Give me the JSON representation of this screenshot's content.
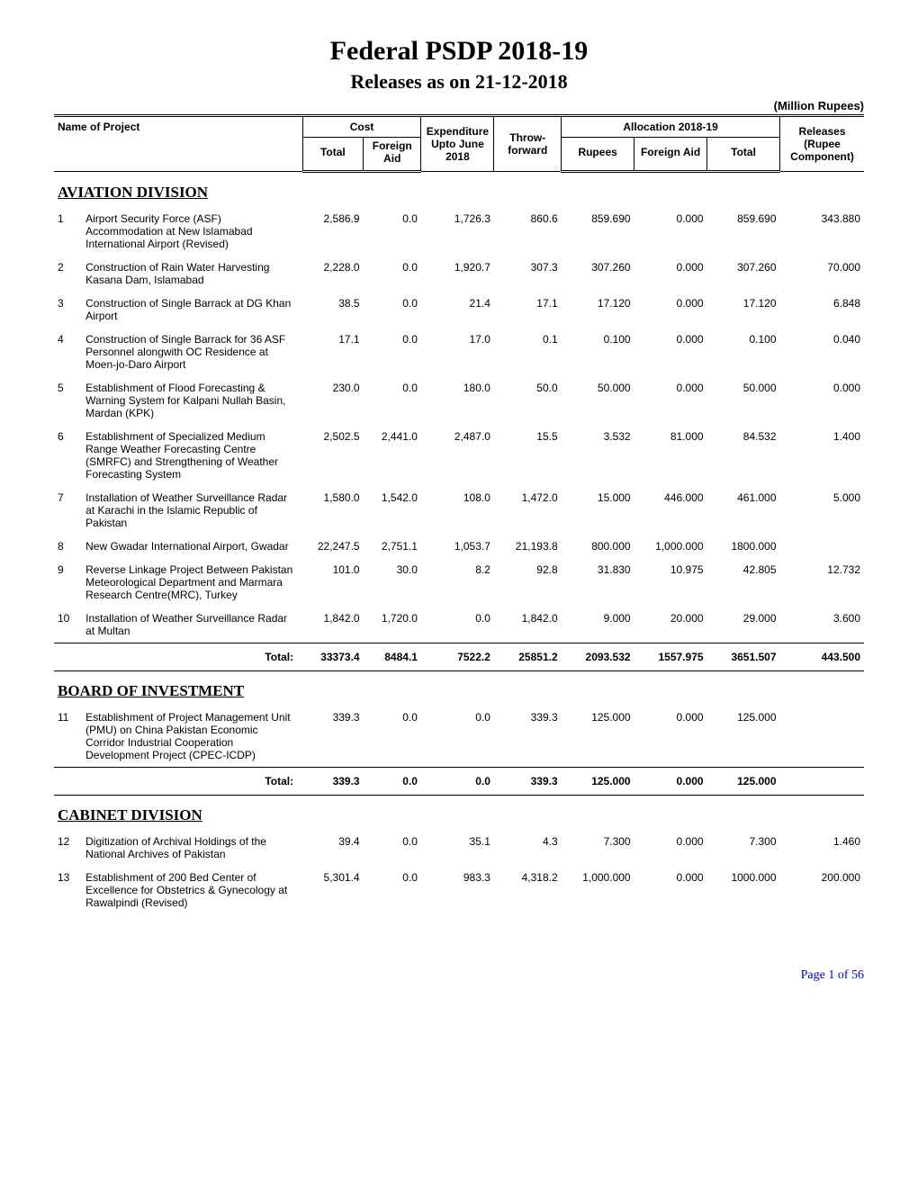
{
  "title": "Federal PSDP 2018-19",
  "subtitle": "Releases as on 21-12-2018",
  "unit_label": "(Million Rupees)",
  "headers": {
    "name": "Name of Project",
    "cost": "Cost",
    "cost_total": "Total",
    "cost_foreign": "Foreign Aid",
    "expenditure": "Expenditure Upto June 2018",
    "throw_forward": "Throw- forward",
    "allocation": "Allocation 2018-19",
    "alloc_rupees": "Rupees",
    "alloc_foreign": "Foreign Aid",
    "alloc_total": "Total",
    "releases": "Releases (Rupee Component)"
  },
  "sections": [
    {
      "title": "AVIATION DIVISION",
      "rows": [
        {
          "n": "1",
          "name": "Airport Security Force (ASF) Accommodation at New Islamabad International Airport (Revised)",
          "ct": "2,586.9",
          "cfa": "0.0",
          "exp": "1,726.3",
          "tf": "860.6",
          "ar": "859.690",
          "afa": "0.000",
          "at": "859.690",
          "rel": "343.880"
        },
        {
          "n": "2",
          "name": "Construction of Rain Water Harvesting Kasana Dam, Islamabad",
          "ct": "2,228.0",
          "cfa": "0.0",
          "exp": "1,920.7",
          "tf": "307.3",
          "ar": "307.260",
          "afa": "0.000",
          "at": "307.260",
          "rel": "70.000"
        },
        {
          "n": "3",
          "name": "Construction of Single Barrack at DG Khan Airport",
          "ct": "38.5",
          "cfa": "0.0",
          "exp": "21.4",
          "tf": "17.1",
          "ar": "17.120",
          "afa": "0.000",
          "at": "17.120",
          "rel": "6.848"
        },
        {
          "n": "4",
          "name": "Construction of Single Barrack for 36 ASF Personnel alongwith OC Residence at Moen-jo-Daro Airport",
          "ct": "17.1",
          "cfa": "0.0",
          "exp": "17.0",
          "tf": "0.1",
          "ar": "0.100",
          "afa": "0.000",
          "at": "0.100",
          "rel": "0.040"
        },
        {
          "n": "5",
          "name": "Establishment of Flood Forecasting & Warning System for Kalpani Nullah Basin, Mardan (KPK)",
          "ct": "230.0",
          "cfa": "0.0",
          "exp": "180.0",
          "tf": "50.0",
          "ar": "50.000",
          "afa": "0.000",
          "at": "50.000",
          "rel": "0.000"
        },
        {
          "n": "6",
          "name": "Establishment of Specialized Medium Range Weather Forecasting Centre (SMRFC) and Strengthening of Weather Forecasting System",
          "ct": "2,502.5",
          "cfa": "2,441.0",
          "exp": "2,487.0",
          "tf": "15.5",
          "ar": "3.532",
          "afa": "81.000",
          "at": "84.532",
          "rel": "1.400"
        },
        {
          "n": "7",
          "name": "Installation of Weather Surveillance Radar at Karachi in the Islamic Republic of Pakistan",
          "ct": "1,580.0",
          "cfa": "1,542.0",
          "exp": "108.0",
          "tf": "1,472.0",
          "ar": "15.000",
          "afa": "446.000",
          "at": "461.000",
          "rel": "5.000"
        },
        {
          "n": "8",
          "name": "New Gwadar International Airport, Gwadar",
          "ct": "22,247.5",
          "cfa": "2,751.1",
          "exp": "1,053.7",
          "tf": "21,193.8",
          "ar": "800.000",
          "afa": "1,000.000",
          "at": "1800.000",
          "rel": ""
        },
        {
          "n": "9",
          "name": "Reverse Linkage Project Between Pakistan Meteorological Department and Marmara Research Centre(MRC), Turkey",
          "ct": "101.0",
          "cfa": "30.0",
          "exp": "8.2",
          "tf": "92.8",
          "ar": "31.830",
          "afa": "10.975",
          "at": "42.805",
          "rel": "12.732"
        },
        {
          "n": "10",
          "name": "Installation of Weather Surveillance Radar at Multan",
          "ct": "1,842.0",
          "cfa": "1,720.0",
          "exp": "0.0",
          "tf": "1,842.0",
          "ar": "9.000",
          "afa": "20.000",
          "at": "29.000",
          "rel": "3.600"
        }
      ],
      "total": {
        "label": "Total:",
        "ct": "33373.4",
        "cfa": "8484.1",
        "exp": "7522.2",
        "tf": "25851.2",
        "ar": "2093.532",
        "afa": "1557.975",
        "at": "3651.507",
        "rel": "443.500"
      }
    },
    {
      "title": "BOARD OF INVESTMENT",
      "rows": [
        {
          "n": "11",
          "name": "Establishment of Project Management Unit (PMU) on China Pakistan Economic Corridor Industrial Cooperation Development Project (CPEC-ICDP)",
          "ct": "339.3",
          "cfa": "0.0",
          "exp": "0.0",
          "tf": "339.3",
          "ar": "125.000",
          "afa": "0.000",
          "at": "125.000",
          "rel": ""
        }
      ],
      "total": {
        "label": "Total:",
        "ct": "339.3",
        "cfa": "0.0",
        "exp": "0.0",
        "tf": "339.3",
        "ar": "125.000",
        "afa": "0.000",
        "at": "125.000",
        "rel": ""
      }
    },
    {
      "title": "CABINET DIVISION",
      "rows": [
        {
          "n": "12",
          "name": "Digitization of Archival Holdings of the National Archives of Pakistan",
          "ct": "39.4",
          "cfa": "0.0",
          "exp": "35.1",
          "tf": "4.3",
          "ar": "7.300",
          "afa": "0.000",
          "at": "7.300",
          "rel": "1.460"
        },
        {
          "n": "13",
          "name": "Establishment of 200 Bed Center of Excellence for Obstetrics & Gynecology at Rawalpindi (Revised)",
          "ct": "5,301.4",
          "cfa": "0.0",
          "exp": "983.3",
          "tf": "4,318.2",
          "ar": "1,000.000",
          "afa": "0.000",
          "at": "1000.000",
          "rel": "200.000"
        }
      ]
    }
  ],
  "footer": "Page 1 of 56"
}
